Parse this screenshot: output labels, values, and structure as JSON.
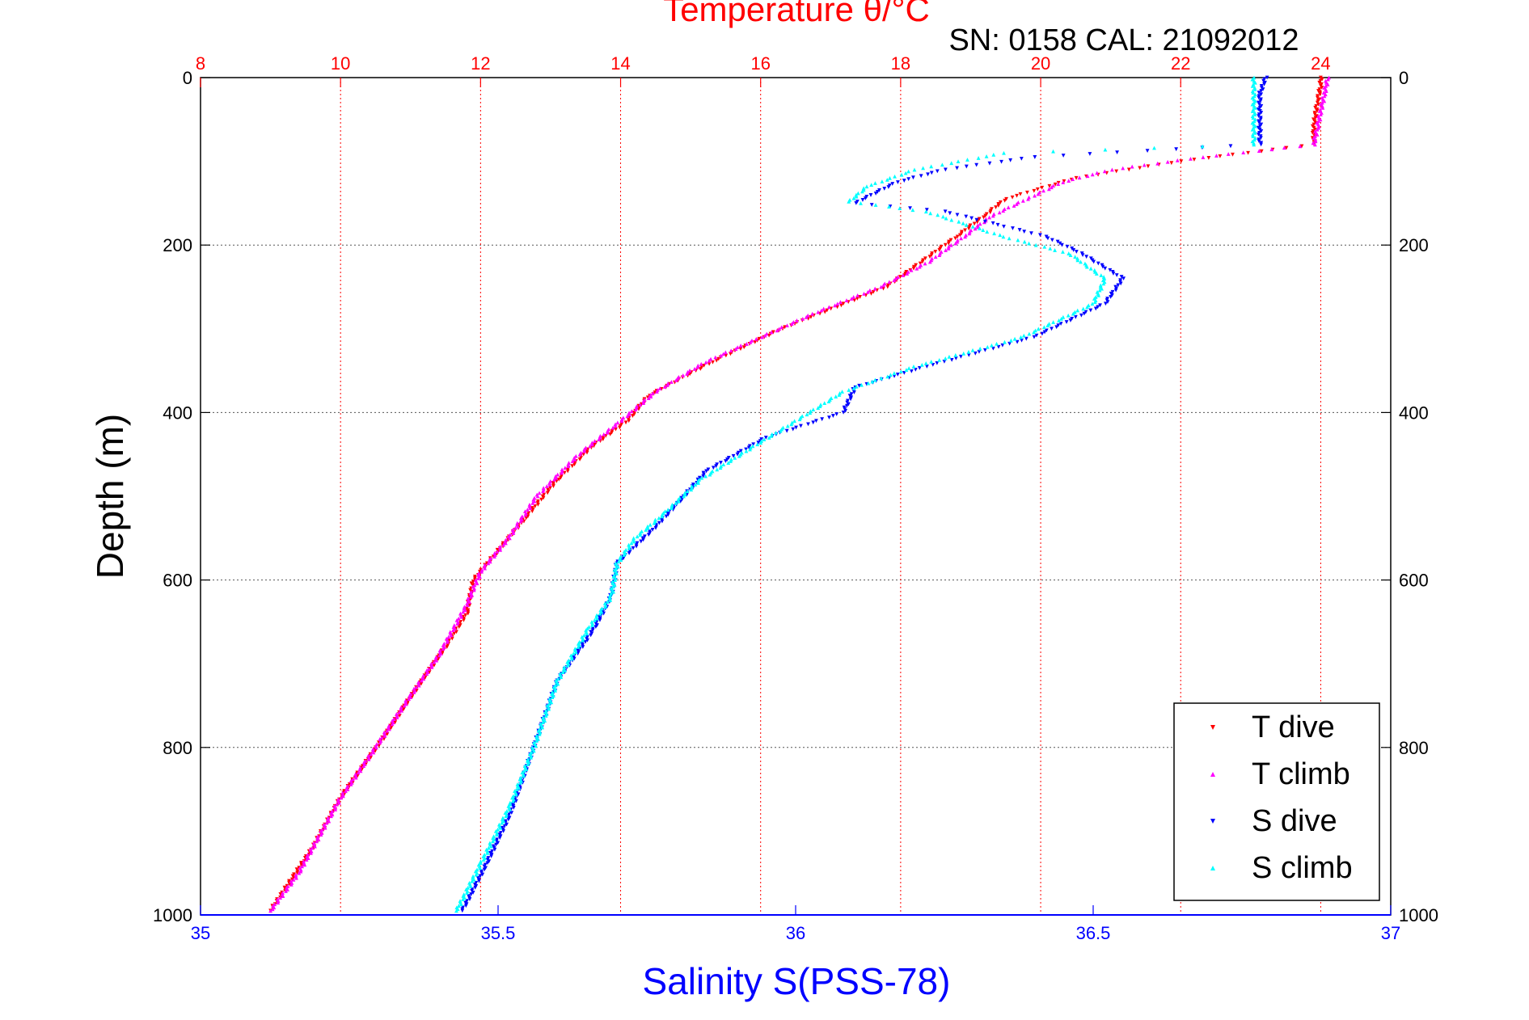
{
  "chart_data": {
    "type": "scatter",
    "title": "Temperature θ/°C",
    "subtitle": "SN: 0158  CAL: 21092012",
    "ylabel": "Depth (m)",
    "xlabel": "Salinity S(PSS-78)",
    "y_axis": {
      "range": [
        0,
        1000
      ],
      "reversed": true,
      "ticks": [
        "0",
        "200",
        "400",
        "600",
        "800",
        "1000"
      ]
    },
    "x_top": {
      "range": [
        8,
        25
      ],
      "color": "#ff0000",
      "ticks": [
        "8",
        "10",
        "12",
        "14",
        "16",
        "18",
        "20",
        "22",
        "24"
      ],
      "grid": true
    },
    "x_bottom": {
      "range": [
        35,
        37
      ],
      "color": "#0000ff",
      "ticks": [
        "35",
        "35.5",
        "36",
        "36.5",
        "37"
      ]
    },
    "legend": {
      "placement": "bottom-right"
    },
    "series": [
      {
        "name": "T dive",
        "axis": "top",
        "color": "#ff0000",
        "marker": "triangle-down",
        "points": [
          [
            24.0,
            0
          ],
          [
            24.0,
            10
          ],
          [
            23.95,
            30
          ],
          [
            23.9,
            60
          ],
          [
            23.9,
            80
          ],
          [
            22.0,
            100
          ],
          [
            20.5,
            120
          ],
          [
            19.5,
            145
          ],
          [
            19.2,
            165
          ],
          [
            18.8,
            190
          ],
          [
            18.3,
            220
          ],
          [
            17.8,
            250
          ],
          [
            16.3,
            300
          ],
          [
            15.3,
            340
          ],
          [
            14.4,
            380
          ],
          [
            14.1,
            410
          ],
          [
            13.6,
            440
          ],
          [
            13.1,
            480
          ],
          [
            12.6,
            530
          ],
          [
            12.2,
            570
          ],
          [
            11.9,
            600
          ],
          [
            11.8,
            640
          ],
          [
            11.5,
            680
          ],
          [
            11.0,
            740
          ],
          [
            10.6,
            790
          ],
          [
            10.0,
            860
          ],
          [
            9.6,
            920
          ],
          [
            9.0,
            995
          ]
        ]
      },
      {
        "name": "T climb",
        "axis": "top",
        "color": "#ff00ff",
        "marker": "triangle-up",
        "points": [
          [
            24.1,
            0
          ],
          [
            24.05,
            20
          ],
          [
            23.95,
            60
          ],
          [
            23.9,
            80
          ],
          [
            22.3,
            95
          ],
          [
            21.0,
            110
          ],
          [
            20.3,
            125
          ],
          [
            19.8,
            145
          ],
          [
            19.3,
            165
          ],
          [
            18.9,
            190
          ],
          [
            18.4,
            220
          ],
          [
            17.7,
            250
          ],
          [
            16.8,
            280
          ],
          [
            16.0,
            310
          ],
          [
            15.2,
            340
          ],
          [
            14.5,
            375
          ],
          [
            14.0,
            410
          ],
          [
            13.4,
            450
          ],
          [
            12.8,
            500
          ],
          [
            12.4,
            550
          ],
          [
            12.0,
            590
          ],
          [
            11.8,
            630
          ],
          [
            11.4,
            690
          ],
          [
            10.9,
            750
          ],
          [
            10.5,
            800
          ],
          [
            10.0,
            860
          ],
          [
            9.4,
            950
          ],
          [
            9.0,
            995
          ]
        ]
      },
      {
        "name": "S dive",
        "axis": "bottom",
        "color": "#0000ff",
        "marker": "triangle-down",
        "points": [
          [
            36.79,
            0
          ],
          [
            36.78,
            20
          ],
          [
            36.78,
            80
          ],
          [
            36.4,
            95
          ],
          [
            36.25,
            110
          ],
          [
            36.17,
            125
          ],
          [
            36.1,
            150
          ],
          [
            36.25,
            160
          ],
          [
            36.42,
            190
          ],
          [
            36.48,
            210
          ],
          [
            36.55,
            240
          ],
          [
            36.52,
            270
          ],
          [
            36.4,
            310
          ],
          [
            36.22,
            345
          ],
          [
            36.1,
            370
          ],
          [
            36.08,
            400
          ],
          [
            35.95,
            430
          ],
          [
            35.85,
            470
          ],
          [
            35.8,
            510
          ],
          [
            35.76,
            540
          ],
          [
            35.7,
            580
          ],
          [
            35.69,
            620
          ],
          [
            35.66,
            660
          ],
          [
            35.6,
            720
          ],
          [
            35.56,
            800
          ],
          [
            35.52,
            880
          ],
          [
            35.48,
            940
          ],
          [
            35.44,
            995
          ]
        ]
      },
      {
        "name": "S climb",
        "axis": "bottom",
        "color": "#00ffff",
        "marker": "triangle-up",
        "points": [
          [
            36.77,
            0
          ],
          [
            36.77,
            30
          ],
          [
            36.77,
            80
          ],
          [
            36.35,
            90
          ],
          [
            36.2,
            110
          ],
          [
            36.12,
            130
          ],
          [
            36.09,
            148
          ],
          [
            36.22,
            160
          ],
          [
            36.35,
            190
          ],
          [
            36.46,
            210
          ],
          [
            36.52,
            240
          ],
          [
            36.5,
            270
          ],
          [
            36.38,
            310
          ],
          [
            36.2,
            345
          ],
          [
            36.08,
            375
          ],
          [
            36.0,
            410
          ],
          [
            35.93,
            440
          ],
          [
            35.84,
            480
          ],
          [
            35.78,
            520
          ],
          [
            35.73,
            550
          ],
          [
            35.7,
            580
          ],
          [
            35.69,
            620
          ],
          [
            35.65,
            660
          ],
          [
            35.6,
            720
          ],
          [
            35.56,
            800
          ],
          [
            35.52,
            870
          ],
          [
            35.47,
            940
          ],
          [
            35.43,
            995
          ]
        ]
      }
    ]
  }
}
